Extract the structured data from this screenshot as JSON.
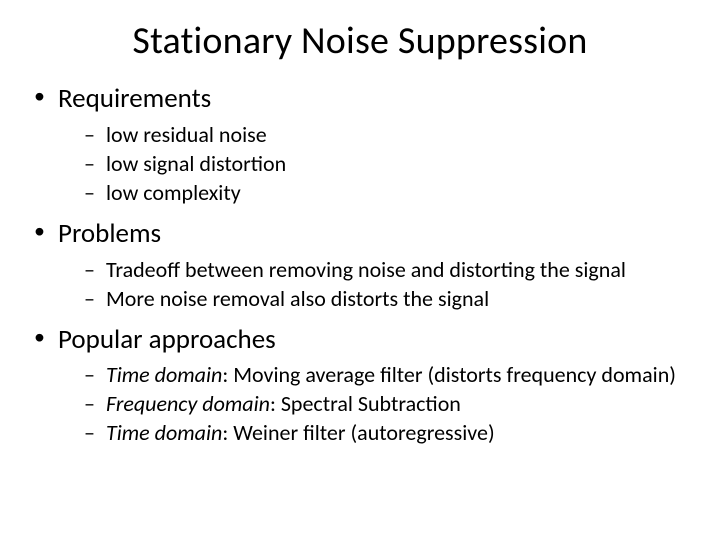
{
  "title": "Stationary Noise Suppression",
  "sections": [
    {
      "heading": "Requirements",
      "items": [
        {
          "text": "low residual noise"
        },
        {
          "text": "low signal distortion"
        },
        {
          "text": "low complexity"
        }
      ]
    },
    {
      "heading": "Problems",
      "items": [
        {
          "text": "Tradeoff between removing noise and distorting the signal"
        },
        {
          "text": "More noise removal also distorts the signal"
        }
      ]
    },
    {
      "heading": "Popular approaches",
      "items": [
        {
          "emph": "Time domain",
          "text": ": Moving average filter (distorts frequency domain)"
        },
        {
          "emph": "Frequency domain",
          "text": ": Spectral Subtraction"
        },
        {
          "emph": "Time domain",
          "text": ": Weiner filter (autoregressive)"
        }
      ]
    }
  ],
  "colors": {
    "background": "#ffffff",
    "text": "#000000"
  },
  "typography": {
    "title_fontsize": 38,
    "lvl1_fontsize": 27,
    "lvl2_fontsize": 22,
    "font_family": "Calibri"
  }
}
